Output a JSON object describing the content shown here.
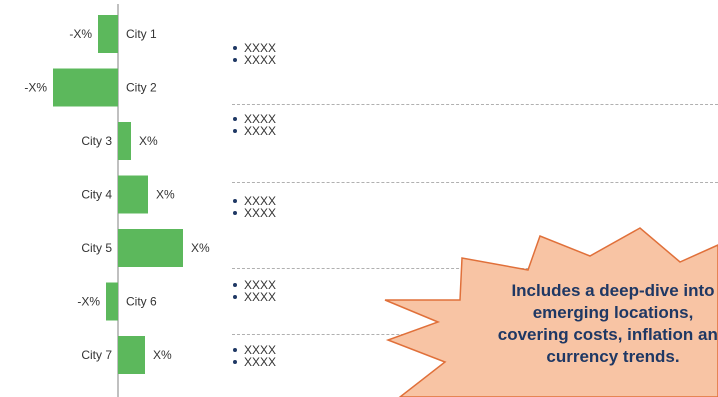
{
  "chart_data": {
    "type": "bar",
    "orientation": "horizontal",
    "categories": [
      "City 1",
      "City 2",
      "City 3",
      "City 4",
      "City 5",
      "City 6",
      "City 7"
    ],
    "values": [
      -2,
      -6.5,
      1.3,
      3,
      6.5,
      -1.2,
      2.7
    ],
    "value_labels": [
      "-X%",
      "-X%",
      "X%",
      "X%",
      "X%",
      "-X%",
      "X%"
    ],
    "bar_color": "#5cb85c",
    "xlim": [
      -7,
      7
    ]
  },
  "bullets": [
    [
      "XXXX",
      "XXXX"
    ],
    [
      "XXXX",
      "XXXX"
    ],
    [
      "XXXX",
      "XXXX"
    ],
    [
      "XXXX",
      "XXXX"
    ],
    [
      "XXXX",
      "XXXX"
    ]
  ],
  "callout": {
    "lines": [
      "Includes a deep-dive into",
      "emerging locations,",
      "covering costs, inflation and",
      "currency trends."
    ],
    "fill_color": "#f8c4a4",
    "border_color": "#e0703a",
    "text_color": "#1f3864"
  },
  "colors": {
    "divider": "#b0b0b0",
    "bullet_dot": "#1f3864",
    "axis": "#808080"
  }
}
